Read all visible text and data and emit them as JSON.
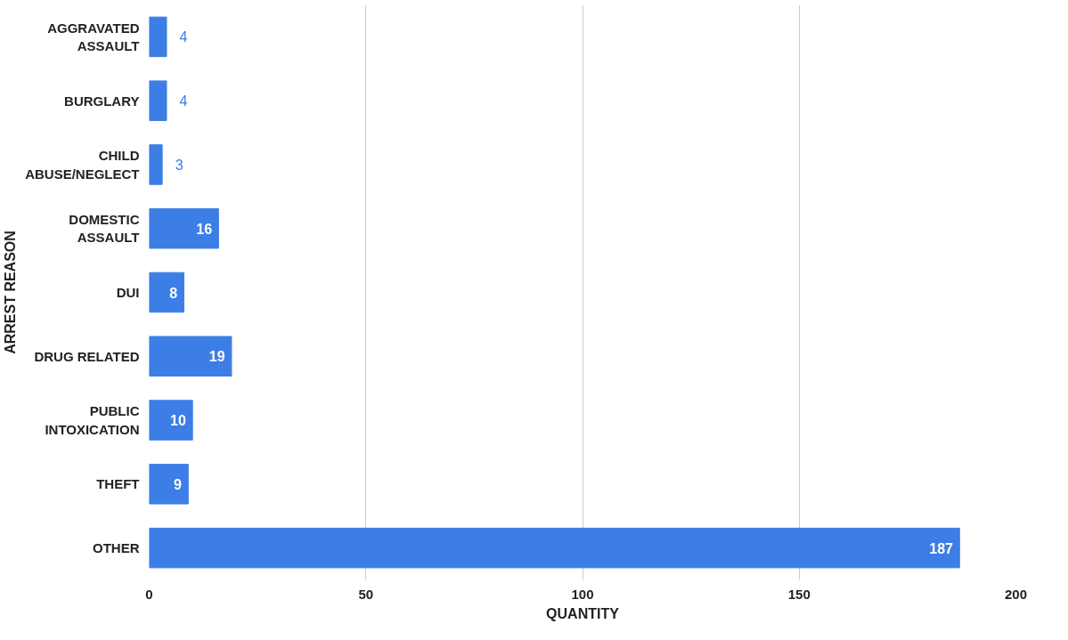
{
  "chart_data": {
    "type": "bar",
    "orientation": "horizontal",
    "xlabel": "QUANTITY",
    "ylabel": "ARREST REASON",
    "categories": [
      "AGGRAVATED ASSAULT",
      "BURGLARY",
      "CHILD ABUSE/NEGLECT",
      "DOMESTIC ASSAULT",
      "DUI",
      "DRUG RELATED",
      "PUBLIC INTOXICATION",
      "THEFT",
      "OTHER"
    ],
    "values": [
      4,
      4,
      3,
      16,
      8,
      19,
      10,
      9,
      187
    ],
    "color": "#3c7ee6",
    "xlim": [
      0,
      200
    ],
    "xticks": [
      0,
      50,
      100,
      150,
      200
    ],
    "grid": "x",
    "data_labels": true
  }
}
